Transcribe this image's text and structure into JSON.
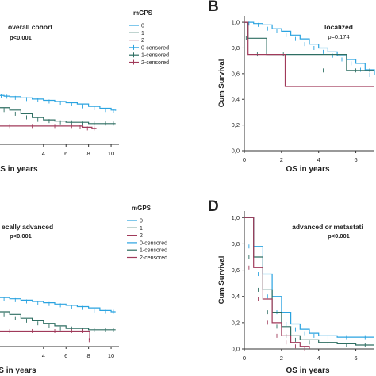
{
  "chart_data": [
    {
      "id": "A",
      "type": "line",
      "panel_label": "",
      "title": "overall cohort",
      "pvalue": "p<0.001",
      "xlabel": "OS in years",
      "ylabel": "",
      "xlim": [
        0,
        10.7
      ],
      "ylim": [
        0,
        1.05
      ],
      "xticks": [
        4,
        6,
        8,
        10
      ],
      "yticks": [],
      "legend": {
        "title": "mGPS",
        "position": "top-right",
        "entries": [
          {
            "label": "0",
            "color": "#2aa3e0",
            "kind": "line"
          },
          {
            "label": "1",
            "color": "#2e6e62",
            "kind": "line"
          },
          {
            "label": "2",
            "color": "#a03a5a",
            "kind": "line"
          },
          {
            "label": "0-censored",
            "color": "#2aa3e0",
            "kind": "censor"
          },
          {
            "label": "1-censored",
            "color": "#2e6e62",
            "kind": "censor"
          },
          {
            "label": "2-censored",
            "color": "#a03a5a",
            "kind": "censor"
          }
        ]
      },
      "series": [
        {
          "color": "#2aa3e0",
          "censor_ticks": true,
          "x": [
            0,
            0.5,
            1,
            2,
            3,
            4,
            5,
            6,
            7,
            8,
            9,
            10,
            10.4
          ],
          "y": [
            0.4,
            0.395,
            0.39,
            0.38,
            0.37,
            0.36,
            0.35,
            0.34,
            0.33,
            0.31,
            0.295,
            0.28,
            0.275
          ]
        },
        {
          "color": "#2e6e62",
          "censor_ticks": true,
          "x": [
            0,
            1,
            2,
            3,
            4,
            5,
            6,
            7,
            8,
            9,
            10,
            10.4
          ],
          "y": [
            0.3,
            0.28,
            0.25,
            0.22,
            0.2,
            0.19,
            0.18,
            0.18,
            0.17,
            0.17,
            0.17,
            0.17
          ]
        },
        {
          "color": "#a03a5a",
          "censor_ticks": true,
          "x": [
            0,
            2,
            4,
            6,
            7,
            7.5,
            8.3,
            8.7
          ],
          "y": [
            0.15,
            0.15,
            0.15,
            0.15,
            0.15,
            0.14,
            0.13,
            0.13
          ]
        }
      ]
    },
    {
      "id": "B",
      "type": "line",
      "panel_label": "B",
      "title": "localized",
      "pvalue": "p=0.174",
      "xlabel": "OS in years",
      "ylabel": "Cum Survival",
      "xlim": [
        0,
        7
      ],
      "ylim": [
        0,
        1.05
      ],
      "xticks": [
        0,
        2,
        4,
        6
      ],
      "yticks": [
        0.0,
        0.2,
        0.4,
        0.6,
        0.8,
        1.0
      ],
      "ytick_labels": [
        "0,0",
        "0,2",
        "0,4",
        "0,6",
        "0,8",
        "1,0"
      ],
      "series": [
        {
          "color": "#2aa3e0",
          "censor_ticks": true,
          "x": [
            0,
            0.5,
            1,
            1.5,
            2,
            2.5,
            3,
            3.5,
            4,
            4.5,
            5,
            5.5,
            6,
            6.5,
            7
          ],
          "y": [
            1.0,
            0.99,
            0.98,
            0.95,
            0.93,
            0.9,
            0.87,
            0.83,
            0.8,
            0.77,
            0.74,
            0.71,
            0.68,
            0.63,
            0.59
          ]
        },
        {
          "color": "#2e6e62",
          "censor_ticks": true,
          "x": [
            0,
            0.2,
            1.2,
            3.0,
            5.5,
            6.5,
            7.0
          ],
          "y": [
            1.0,
            0.875,
            0.75,
            0.75,
            0.625,
            0.625,
            0.625
          ]
        },
        {
          "color": "#a03a5a",
          "censor_ticks": false,
          "x": [
            0,
            0.2,
            2.2,
            6.5,
            7.0
          ],
          "y": [
            1.0,
            0.75,
            0.5,
            0.5,
            0.5
          ]
        }
      ]
    },
    {
      "id": "C",
      "type": "line",
      "panel_label": "",
      "title": "ecally advanced",
      "pvalue": "p<0.001",
      "xlabel": "OS in years",
      "ylabel": "",
      "xlim": [
        0,
        10.7
      ],
      "ylim": [
        0,
        1.05
      ],
      "xticks": [
        4,
        6,
        8,
        10
      ],
      "yticks": [],
      "legend": {
        "title": "mGPS",
        "position": "top-right",
        "entries": [
          {
            "label": "0",
            "color": "#2aa3e0",
            "kind": "line"
          },
          {
            "label": "1",
            "color": "#2e6e62",
            "kind": "line"
          },
          {
            "label": "2",
            "color": "#a03a5a",
            "kind": "line"
          },
          {
            "label": "0-censored",
            "color": "#2aa3e0",
            "kind": "censor"
          },
          {
            "label": "1-censored",
            "color": "#2e6e62",
            "kind": "censor"
          },
          {
            "label": "2-censored",
            "color": "#a03a5a",
            "kind": "censor"
          }
        ]
      },
      "series": [
        {
          "color": "#2aa3e0",
          "censor_ticks": true,
          "x": [
            0,
            1,
            2,
            3,
            4,
            5,
            6,
            7,
            8,
            9,
            10,
            10.4
          ],
          "y": [
            0.38,
            0.37,
            0.36,
            0.35,
            0.34,
            0.33,
            0.32,
            0.31,
            0.3,
            0.28,
            0.27,
            0.27
          ]
        },
        {
          "color": "#2e6e62",
          "censor_ticks": true,
          "x": [
            0,
            1,
            2,
            3,
            4,
            5,
            6,
            7,
            8,
            9,
            10,
            10.4
          ],
          "y": [
            0.27,
            0.25,
            0.22,
            0.2,
            0.18,
            0.16,
            0.14,
            0.14,
            0.13,
            0.13,
            0.13,
            0.13
          ]
        },
        {
          "color": "#a03a5a",
          "censor_ticks": true,
          "x": [
            0,
            2,
            4,
            6,
            7,
            8.0,
            8.1
          ],
          "y": [
            0.12,
            0.12,
            0.12,
            0.12,
            0.12,
            0.12,
            0.05
          ]
        }
      ]
    },
    {
      "id": "D",
      "type": "line",
      "panel_label": "D",
      "title": "advanced or metastati",
      "pvalue": "p<0.001",
      "xlabel": "OS in years",
      "ylabel": "Cum Survival",
      "xlim": [
        0,
        7
      ],
      "ylim": [
        0,
        1.05
      ],
      "xticks": [
        0,
        2,
        4,
        6
      ],
      "yticks": [
        0.0,
        0.2,
        0.4,
        0.6,
        0.8,
        1.0
      ],
      "ytick_labels": [
        "0,0",
        "0,2",
        "0,4",
        "0,6",
        "0,8",
        "1,0"
      ],
      "series": [
        {
          "color": "#2aa3e0",
          "censor_ticks": true,
          "x": [
            0,
            0.5,
            1,
            1.5,
            2,
            2.5,
            3,
            3.5,
            4,
            5,
            6,
            7
          ],
          "y": [
            1.0,
            0.78,
            0.57,
            0.4,
            0.28,
            0.19,
            0.15,
            0.12,
            0.1,
            0.09,
            0.09,
            0.09
          ]
        },
        {
          "color": "#2e6e62",
          "censor_ticks": true,
          "x": [
            0,
            0.5,
            1,
            1.5,
            2,
            2.5,
            3,
            4,
            5,
            6,
            7
          ],
          "y": [
            1.0,
            0.7,
            0.45,
            0.28,
            0.17,
            0.1,
            0.07,
            0.05,
            0.04,
            0.03,
            0.03
          ]
        },
        {
          "color": "#a03a5a",
          "censor_ticks": true,
          "x": [
            0,
            0.5,
            1,
            1.5,
            2,
            2.5,
            3,
            3.5
          ],
          "y": [
            1.0,
            0.62,
            0.38,
            0.2,
            0.1,
            0.05,
            0.02,
            0.0
          ]
        }
      ]
    }
  ]
}
